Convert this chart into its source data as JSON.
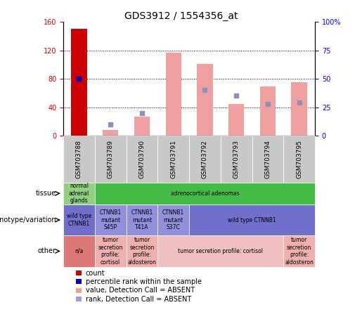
{
  "title": "GDS3912 / 1554356_at",
  "samples": [
    "GSM703788",
    "GSM703789",
    "GSM703790",
    "GSM703791",
    "GSM703792",
    "GSM703793",
    "GSM703794",
    "GSM703795"
  ],
  "count_values": [
    150,
    0,
    0,
    0,
    0,
    0,
    0,
    0
  ],
  "percentile_rank_present": [
    50,
    0,
    0,
    0,
    0,
    0,
    0,
    0
  ],
  "value_absent": [
    0,
    5,
    17,
    73,
    63,
    28,
    43,
    47
  ],
  "rank_absent": [
    0,
    10,
    20,
    0,
    40,
    35,
    28,
    29
  ],
  "ylim_left": [
    0,
    160
  ],
  "ylim_right": [
    0,
    100
  ],
  "yticks_left": [
    0,
    40,
    80,
    120,
    160
  ],
  "ytick_labels_left": [
    "0",
    "40",
    "80",
    "120",
    "160"
  ],
  "yticks_right": [
    0,
    25,
    50,
    75,
    100
  ],
  "ytick_labels_right": [
    "0",
    "25",
    "50",
    "75",
    "100%"
  ],
  "tissue_cells": [
    {
      "text": "normal\nadrenal\nglands",
      "colspan": 1,
      "color": "#90d080"
    },
    {
      "text": "adrenocortical adenomas",
      "colspan": 7,
      "color": "#44bb44"
    }
  ],
  "genotype_cells": [
    {
      "text": "wild type\nCTNNB1",
      "colspan": 1,
      "color": "#7070cc"
    },
    {
      "text": "CTNNB1\nmutant\nS45P",
      "colspan": 1,
      "color": "#9090dd"
    },
    {
      "text": "CTNNB1\nmutant\nT41A",
      "colspan": 1,
      "color": "#9090dd"
    },
    {
      "text": "CTNNB1\nmutant\nS37C",
      "colspan": 1,
      "color": "#9090dd"
    },
    {
      "text": "wild type CTNNB1",
      "colspan": 4,
      "color": "#7070cc"
    }
  ],
  "other_cells": [
    {
      "text": "n/a",
      "colspan": 1,
      "color": "#dd7777"
    },
    {
      "text": "tumor\nsecretion\nprofile:\ncortisol",
      "colspan": 1,
      "color": "#f0b0b0"
    },
    {
      "text": "tumor\nsecretion\nprofile:\naldosteron",
      "colspan": 1,
      "color": "#f0b0b0"
    },
    {
      "text": "tumor secretion profile: cortisol",
      "colspan": 4,
      "color": "#f0c0c0"
    },
    {
      "text": "tumor\nsecretion\nprofile:\naldosteron",
      "colspan": 1,
      "color": "#f0b0b0"
    }
  ],
  "legend_items": [
    {
      "label": "count",
      "color": "#cc0000"
    },
    {
      "label": "percentile rank within the sample",
      "color": "#0000cc"
    },
    {
      "label": "value, Detection Call = ABSENT",
      "color": "#f0a0a0"
    },
    {
      "label": "rank, Detection Call = ABSENT",
      "color": "#a0a0d0"
    }
  ],
  "bar_color_count": "#cc0000",
  "bar_color_value_absent": "#f0a0a0",
  "dot_color_rank_present": "#0000cc",
  "dot_color_rank_absent": "#9090bb",
  "sample_box_color": "#c8c8c8"
}
